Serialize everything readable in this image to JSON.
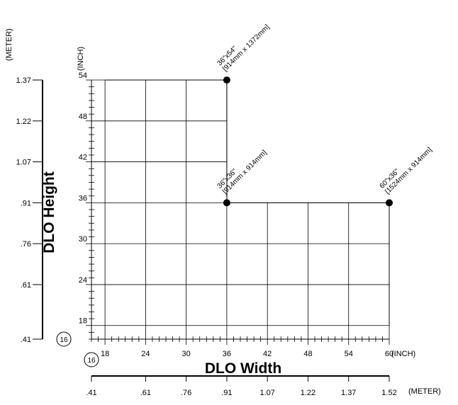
{
  "chart_data": {
    "type": "scatter",
    "title": "",
    "xlabel": "DLO Width",
    "ylabel": "DLO Height",
    "x_unit": "(INCH)",
    "y_unit": "(INCH)",
    "x_secondary_unit": "(METER)",
    "y_secondary_unit": "(METER)",
    "xlim": [
      16,
      60
    ],
    "ylim": [
      16,
      54
    ],
    "x_ticks": [
      "18",
      "24",
      "30",
      "36",
      "42",
      "48",
      "54",
      "60"
    ],
    "y_ticks": [
      "18",
      "24",
      "30",
      "36",
      "42",
      "48",
      "54"
    ],
    "origin_label": "16",
    "x_meter_ticks": [
      {
        "inch": 16,
        "label": ".41"
      },
      {
        "inch": 24,
        "label": ".61"
      },
      {
        "inch": 30,
        "label": ".76"
      },
      {
        "inch": 36,
        "label": ".91"
      },
      {
        "inch": 42,
        "label": "1.07"
      },
      {
        "inch": 48,
        "label": "1.22"
      },
      {
        "inch": 54,
        "label": "1.37"
      },
      {
        "inch": 60,
        "label": "1.52"
      }
    ],
    "y_meter_ticks": [
      {
        "inch": 16,
        "label": ".41"
      },
      {
        "inch": 24,
        "label": ".61"
      },
      {
        "inch": 30,
        "label": ".76"
      },
      {
        "inch": 36,
        "label": ".91"
      },
      {
        "inch": 42,
        "label": "1.07"
      },
      {
        "inch": 48,
        "label": "1.22"
      },
      {
        "inch": 54,
        "label": "1.37"
      }
    ],
    "points": [
      {
        "x": 36,
        "y": 54,
        "label1": "36\"x54\"",
        "label2": "[914mm x 1372mm]"
      },
      {
        "x": 36,
        "y": 36,
        "label1": "36\"x36\"",
        "label2": "[914mm x 914mm]"
      },
      {
        "x": 60,
        "y": 36,
        "label1": "60\"x36\"",
        "label2": "[1524mm x 914mm]"
      }
    ],
    "region_boundary": [
      [
        18,
        54
      ],
      [
        36,
        54
      ],
      [
        36,
        36
      ],
      [
        60,
        36
      ],
      [
        60,
        18
      ]
    ],
    "grid": true
  }
}
